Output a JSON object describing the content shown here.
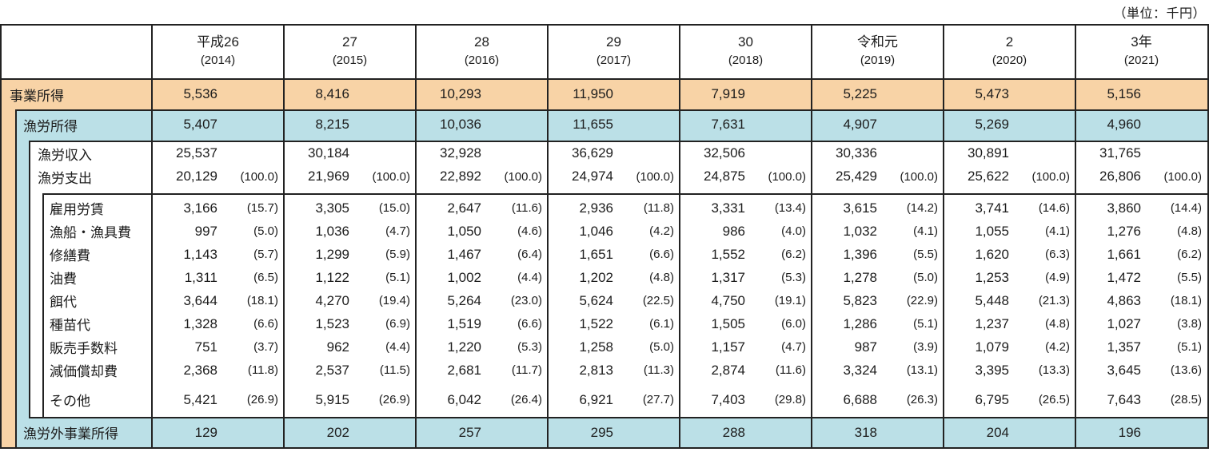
{
  "unit_note": "（単位：千円）",
  "chart_data": {
    "type": "table",
    "unit": "千円",
    "columns": [
      {
        "era": "平成26",
        "year": "(2014)"
      },
      {
        "era": "27",
        "year": "(2015)"
      },
      {
        "era": "28",
        "year": "(2016)"
      },
      {
        "era": "29",
        "year": "(2017)"
      },
      {
        "era": "30",
        "year": "(2018)"
      },
      {
        "era": "令和元",
        "year": "(2019)"
      },
      {
        "era": "2",
        "year": "(2020)"
      },
      {
        "era": "3年",
        "year": "(2021)"
      }
    ],
    "rows": [
      {
        "id": "business-income",
        "label": "事業所得",
        "level": 0,
        "values": [
          5536,
          8416,
          10293,
          11950,
          7919,
          5225,
          5473,
          5156
        ]
      },
      {
        "id": "fishing-income",
        "label": "漁労所得",
        "level": 1,
        "values": [
          5407,
          8215,
          10036,
          11655,
          7631,
          4907,
          5269,
          4960
        ]
      },
      {
        "id": "fishing-revenue",
        "label": "漁労収入",
        "level": 2,
        "values": [
          25537,
          30184,
          32928,
          36629,
          32506,
          30336,
          30891,
          31765
        ]
      },
      {
        "id": "fishing-expense",
        "label": "漁労支出",
        "level": 2,
        "values": [
          20129,
          21969,
          22892,
          24974,
          24875,
          25429,
          25622,
          26806
        ],
        "pct": [
          100.0,
          100.0,
          100.0,
          100.0,
          100.0,
          100.0,
          100.0,
          100.0
        ]
      },
      {
        "id": "expense-hired-labor",
        "label": "雇用労賃",
        "level": 3,
        "values": [
          3166,
          3305,
          2647,
          2936,
          3331,
          3615,
          3741,
          3860
        ],
        "pct": [
          15.7,
          15.0,
          11.6,
          11.8,
          13.4,
          14.2,
          14.6,
          14.4
        ]
      },
      {
        "id": "expense-boat-gear",
        "label": "漁船・漁具費",
        "level": 3,
        "values": [
          997,
          1036,
          1050,
          1046,
          986,
          1032,
          1055,
          1276
        ],
        "pct": [
          5.0,
          4.7,
          4.6,
          4.2,
          4.0,
          4.1,
          4.1,
          4.8
        ]
      },
      {
        "id": "expense-repair",
        "label": "修繕費",
        "level": 3,
        "values": [
          1143,
          1299,
          1467,
          1651,
          1552,
          1396,
          1620,
          1661
        ],
        "pct": [
          5.7,
          5.9,
          6.4,
          6.6,
          6.2,
          5.5,
          6.3,
          6.2
        ]
      },
      {
        "id": "expense-fuel",
        "label": "油費",
        "level": 3,
        "values": [
          1311,
          1122,
          1002,
          1202,
          1317,
          1278,
          1253,
          1472
        ],
        "pct": [
          6.5,
          5.1,
          4.4,
          4.8,
          5.3,
          5.0,
          4.9,
          5.5
        ]
      },
      {
        "id": "expense-bait",
        "label": "餌代",
        "level": 3,
        "values": [
          3644,
          4270,
          5264,
          5624,
          4750,
          5823,
          5448,
          4863
        ],
        "pct": [
          18.1,
          19.4,
          23.0,
          22.5,
          19.1,
          22.9,
          21.3,
          18.1
        ]
      },
      {
        "id": "expense-seed",
        "label": "種苗代",
        "level": 3,
        "values": [
          1328,
          1523,
          1519,
          1522,
          1505,
          1286,
          1237,
          1027
        ],
        "pct": [
          6.6,
          6.9,
          6.6,
          6.1,
          6.0,
          5.1,
          4.8,
          3.8
        ]
      },
      {
        "id": "expense-sales-fee",
        "label": "販売手数料",
        "level": 3,
        "values": [
          751,
          962,
          1220,
          1258,
          1157,
          987,
          1079,
          1357
        ],
        "pct": [
          3.7,
          4.4,
          5.3,
          5.0,
          4.7,
          3.9,
          4.2,
          5.1
        ]
      },
      {
        "id": "expense-depreciation",
        "label": "減価償却費",
        "level": 3,
        "values": [
          2368,
          2537,
          2681,
          2813,
          2874,
          3324,
          3395,
          3645
        ],
        "pct": [
          11.8,
          11.5,
          11.7,
          11.3,
          11.6,
          13.1,
          13.3,
          13.6
        ]
      },
      {
        "id": "expense-other",
        "label": "その他",
        "level": 3,
        "values": [
          5421,
          5915,
          6042,
          6921,
          7403,
          6688,
          6795,
          7643
        ],
        "pct": [
          26.9,
          26.9,
          26.4,
          27.7,
          29.8,
          26.3,
          26.5,
          28.5
        ]
      },
      {
        "id": "non-fishing-business-income",
        "label": "漁労外事業所得",
        "level": 1,
        "values": [
          129,
          202,
          257,
          295,
          288,
          318,
          204,
          196
        ]
      }
    ]
  }
}
